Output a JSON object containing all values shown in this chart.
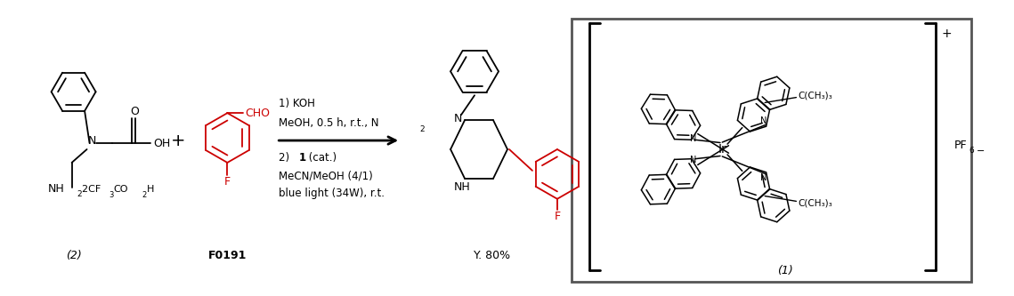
{
  "bg_color": "#ffffff",
  "text_color": "#000000",
  "red_color": "#cc0000",
  "gray_color": "#555555",
  "figure_width": 11.39,
  "figure_height": 3.33,
  "label_2": "(2)",
  "label_F0191": "F0191",
  "label_yield": "Y. 80%",
  "label_1": "(1)"
}
